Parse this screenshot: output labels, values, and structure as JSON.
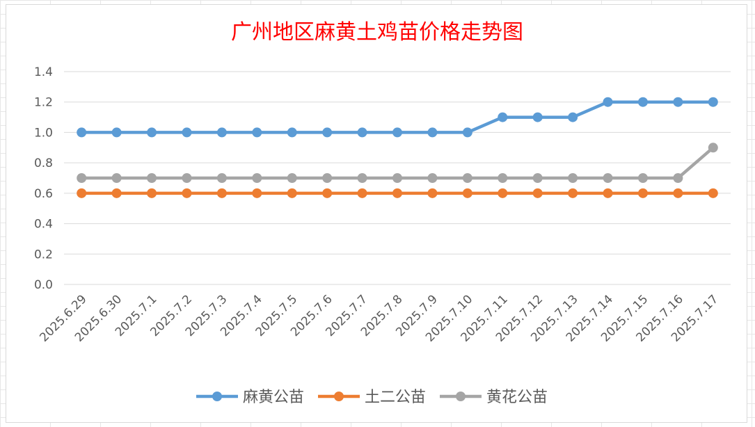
{
  "chart_data": {
    "type": "line",
    "title": "广州地区麻黄土鸡苗价格走势图",
    "title_color": "#ff0000",
    "categories": [
      "2025.6.29",
      "2025.6.30",
      "2025.7.1",
      "2025.7.2",
      "2025.7.3",
      "2025.7.4",
      "2025.7.5",
      "2025.7.6",
      "2025.7.7",
      "2025.7.8",
      "2025.7.9",
      "2025.7.10",
      "2025.7.11",
      "2025.7.12",
      "2025.7.13",
      "2025.7.14",
      "2025.7.15",
      "2025.7.16",
      "2025.7.17"
    ],
    "series": [
      {
        "name": "麻黄公苗",
        "color": "#5b9bd5",
        "values": [
          1.0,
          1.0,
          1.0,
          1.0,
          1.0,
          1.0,
          1.0,
          1.0,
          1.0,
          1.0,
          1.0,
          1.0,
          1.1,
          1.1,
          1.1,
          1.2,
          1.2,
          1.2,
          1.2
        ]
      },
      {
        "name": "土二公苗",
        "color": "#ed7d31",
        "values": [
          0.6,
          0.6,
          0.6,
          0.6,
          0.6,
          0.6,
          0.6,
          0.6,
          0.6,
          0.6,
          0.6,
          0.6,
          0.6,
          0.6,
          0.6,
          0.6,
          0.6,
          0.6,
          0.6
        ]
      },
      {
        "name": "黄花公苗",
        "color": "#a5a5a5",
        "values": [
          0.7,
          0.7,
          0.7,
          0.7,
          0.7,
          0.7,
          0.7,
          0.7,
          0.7,
          0.7,
          0.7,
          0.7,
          0.7,
          0.7,
          0.7,
          0.7,
          0.7,
          0.7,
          0.9
        ]
      }
    ],
    "ylim": [
      0,
      1.4
    ],
    "yticks": [
      "0.0",
      "0.2",
      "0.4",
      "0.6",
      "0.8",
      "1.0",
      "1.2",
      "1.4"
    ],
    "grid": true,
    "legend_position": "bottom"
  }
}
